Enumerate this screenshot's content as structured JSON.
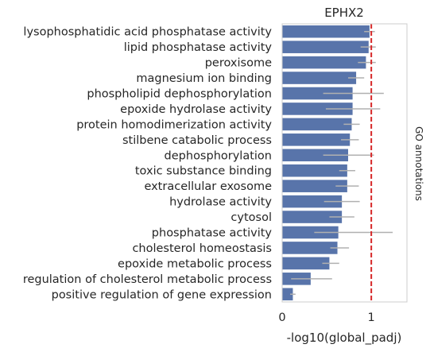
{
  "chart_data": {
    "type": "bar",
    "orientation": "horizontal",
    "title": "EPHX2",
    "xlabel": "-log10(global_padj)",
    "ylabel": "",
    "right_label": "GO annotations",
    "xlim": [
      0,
      1.4
    ],
    "xticks": [
      0,
      1
    ],
    "threshold_line": 1,
    "grid": false,
    "colors": {
      "bar": "#5874aa",
      "threshold": "#d62728",
      "errorbar": "#b0b0b0",
      "frame": "#cccccc"
    },
    "categories": [
      "lysophosphatidic acid phosphatase activity",
      "lipid phosphatase activity",
      "peroxisome",
      "magnesium ion binding",
      "phospholipid dephosphorylation",
      "epoxide hydrolase activity",
      "protein homodimerization activity",
      "stilbene catabolic process",
      "dephosphorylation",
      "toxic substance binding",
      "extracellular exosome",
      "hydrolase activity",
      "cytosol",
      "phosphatase activity",
      "cholesterol homeostasis",
      "epoxide metabolic process",
      "regulation of cholesterol metabolic process",
      "positive regulation of gene expression"
    ],
    "values": [
      0.98,
      0.97,
      0.94,
      0.83,
      0.79,
      0.79,
      0.78,
      0.76,
      0.74,
      0.73,
      0.73,
      0.67,
      0.67,
      0.63,
      0.62,
      0.53,
      0.32,
      0.12
    ],
    "error_low": [
      0.92,
      0.88,
      0.85,
      0.74,
      0.46,
      0.49,
      0.69,
      0.66,
      0.46,
      0.64,
      0.6,
      0.47,
      0.53,
      0.36,
      0.54,
      0.45,
      0.1,
      0.09
    ],
    "error_high": [
      1.04,
      1.05,
      1.05,
      0.92,
      1.14,
      1.1,
      0.87,
      0.86,
      1.03,
      0.82,
      0.86,
      0.87,
      0.81,
      1.24,
      0.75,
      0.64,
      0.56,
      0.15
    ]
  }
}
